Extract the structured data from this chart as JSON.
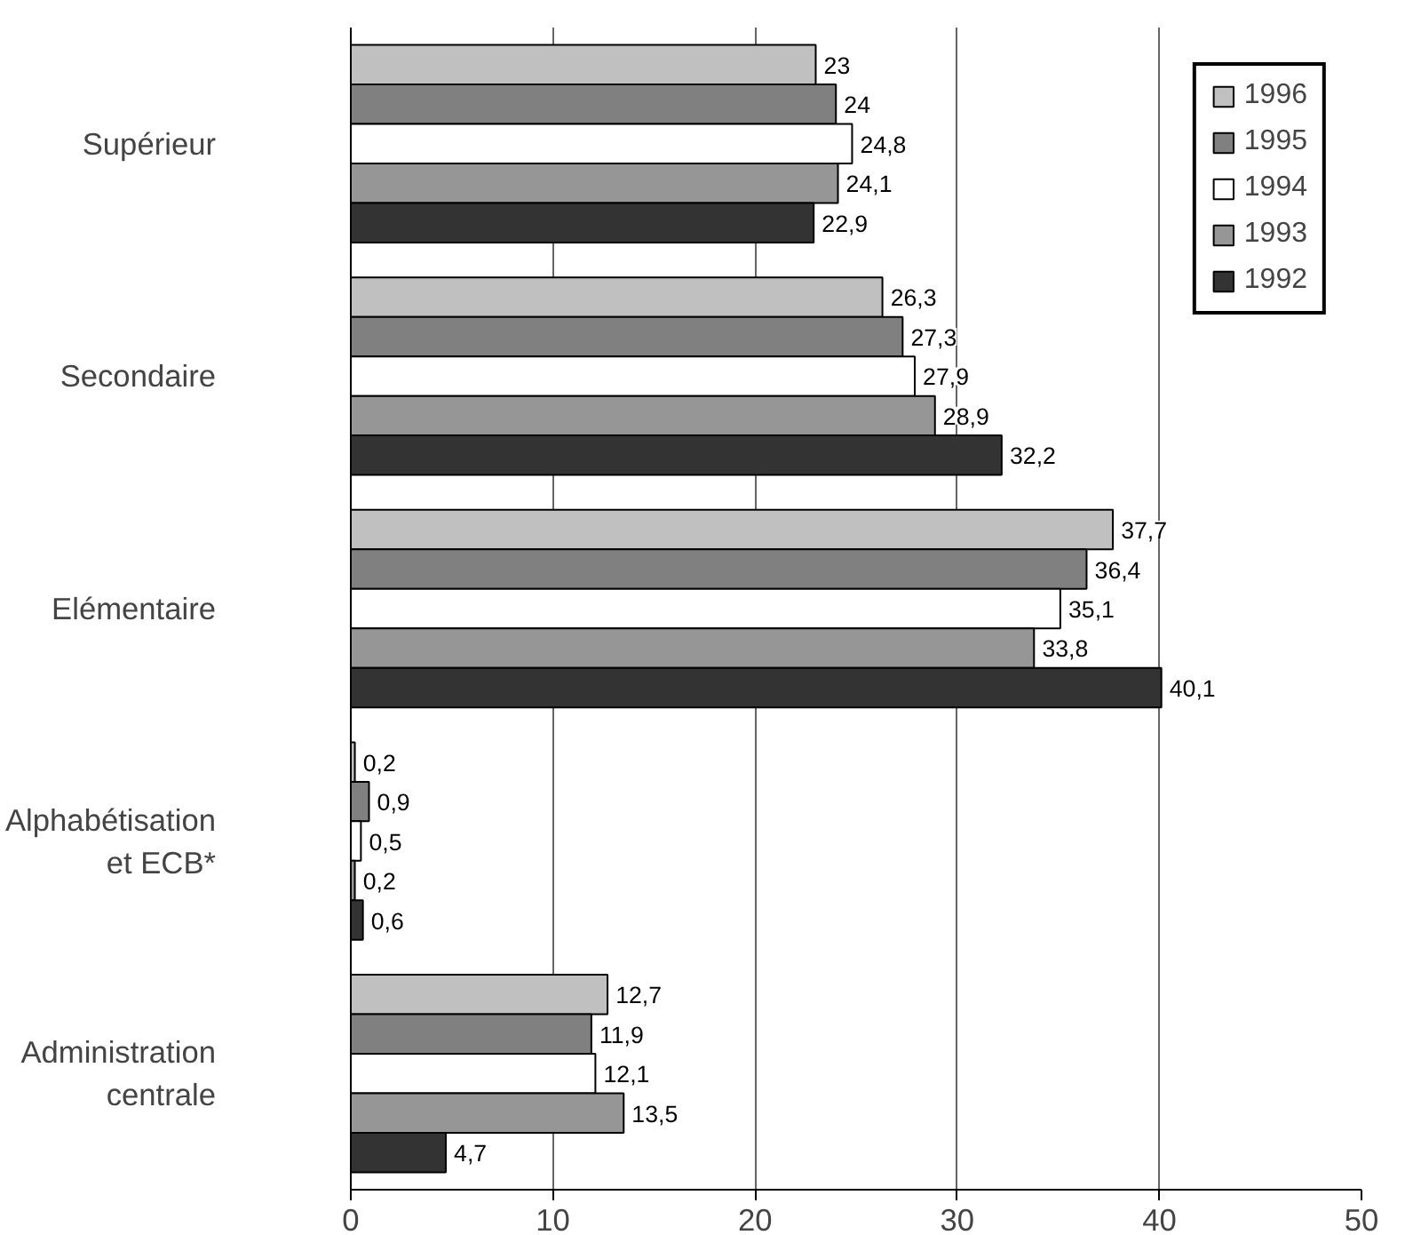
{
  "chart_data": {
    "type": "bar",
    "orientation": "horizontal",
    "categories": [
      "Supérieur",
      "Secondaire",
      "Elémentaire",
      "Alphabétisation\net ECB*",
      "Administration\ncentrale"
    ],
    "series": [
      {
        "name": "1996",
        "color": "#c0c0c0",
        "values": [
          23,
          26.3,
          37.7,
          0.2,
          12.7
        ],
        "value_labels": [
          "23",
          "26,3",
          "37,7",
          "0,2",
          "12,7"
        ]
      },
      {
        "name": "1995",
        "color": "#808080",
        "values": [
          24,
          27.3,
          36.4,
          0.9,
          11.9
        ],
        "value_labels": [
          "24",
          "27,3",
          "36,4",
          "0,9",
          "11,9"
        ]
      },
      {
        "name": "1994",
        "color": "#ffffff",
        "values": [
          24.8,
          27.9,
          35.1,
          0.5,
          12.1
        ],
        "value_labels": [
          "24,8",
          "27,9",
          "35,1",
          "0,5",
          "12,1"
        ]
      },
      {
        "name": "1993",
        "color": "#969696",
        "values": [
          24.1,
          28.9,
          33.8,
          0.2,
          13.5
        ],
        "value_labels": [
          "24,1",
          "28,9",
          "33,8",
          "0,2",
          "13,5"
        ]
      },
      {
        "name": "1992",
        "color": "#333333",
        "values": [
          22.9,
          32.2,
          40.1,
          0.6,
          4.7
        ],
        "value_labels": [
          "22,9",
          "32,2",
          "40,1",
          "0,6",
          "4,7"
        ]
      }
    ],
    "xlim": [
      0,
      50
    ],
    "xticks": [
      0,
      10,
      20,
      30,
      40,
      50
    ],
    "grid": "x",
    "legend": "top right"
  }
}
